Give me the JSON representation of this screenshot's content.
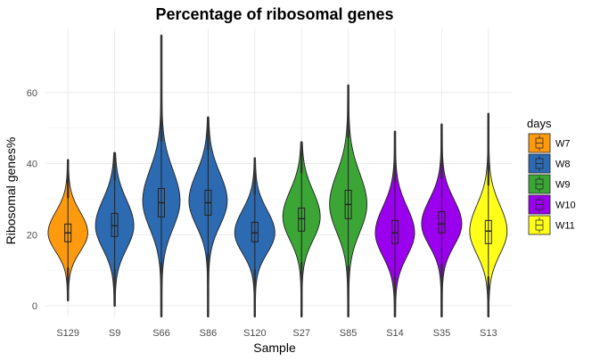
{
  "chart_data": {
    "type": "violin",
    "title": "Percentage of ribosomal genes",
    "xlabel": "Sample",
    "ylabel": "Ribosomal genes%",
    "ylim": [
      -3,
      78
    ],
    "yticks": [
      0,
      20,
      40,
      60
    ],
    "grid": true,
    "legend": {
      "title": "days",
      "placement": "right"
    },
    "groups": [
      {
        "name": "W7",
        "color": "#FF9A0E"
      },
      {
        "name": "W8",
        "color": "#2C6AB1"
      },
      {
        "name": "W9",
        "color": "#3BA635"
      },
      {
        "name": "W10",
        "color": "#9B00EE"
      },
      {
        "name": "W11",
        "color": "#FFFF1A"
      }
    ],
    "categories": [
      "S129",
      "S9",
      "S66",
      "S86",
      "S120",
      "S27",
      "S85",
      "S14",
      "S35",
      "S13"
    ],
    "samples": [
      {
        "category": "S129",
        "group": "W7",
        "min": 1.5,
        "max": 41,
        "median": 20.5,
        "q1": 18,
        "q3": 23,
        "mode": 20.5,
        "whisker_low": 10.5,
        "whisker_high": 30.5,
        "width": 0.85
      },
      {
        "category": "S9",
        "group": "W8",
        "min": 0,
        "max": 43,
        "median": 22.5,
        "q1": 19.5,
        "q3": 26,
        "mode": 22.5,
        "whisker_low": 10,
        "whisker_high": 35.5,
        "width": 0.82
      },
      {
        "category": "S66",
        "group": "W8",
        "min": -3,
        "max": 76,
        "median": 29,
        "q1": 25,
        "q3": 33,
        "mode": 29.5,
        "whisker_low": 12,
        "whisker_high": 46.5,
        "width": 0.8
      },
      {
        "category": "S86",
        "group": "W8",
        "min": -3,
        "max": 53,
        "median": 29,
        "q1": 25.5,
        "q3": 32.5,
        "mode": 29.5,
        "whisker_low": 14.5,
        "whisker_high": 44,
        "width": 0.82
      },
      {
        "category": "S120",
        "group": "W8",
        "min": -3,
        "max": 41.5,
        "median": 20.5,
        "q1": 18,
        "q3": 23.5,
        "mode": 20.5,
        "whisker_low": 10,
        "whisker_high": 31.5,
        "width": 0.86
      },
      {
        "category": "S27",
        "group": "W9",
        "min": -3,
        "max": 46,
        "median": 24.5,
        "q1": 21,
        "q3": 27.5,
        "mode": 25,
        "whisker_low": 12,
        "whisker_high": 37.5,
        "width": 0.8
      },
      {
        "category": "S85",
        "group": "W9",
        "min": -3,
        "max": 62,
        "median": 28.5,
        "q1": 24.5,
        "q3": 32.5,
        "mode": 28.5,
        "whisker_low": 11,
        "whisker_high": 47.5,
        "width": 0.8
      },
      {
        "category": "S14",
        "group": "W10",
        "min": -3,
        "max": 49,
        "median": 20.5,
        "q1": 17.5,
        "q3": 24,
        "mode": 20.5,
        "whisker_low": 8,
        "whisker_high": 35,
        "width": 0.84
      },
      {
        "category": "S35",
        "group": "W10",
        "min": -3,
        "max": 51,
        "median": 23,
        "q1": 20.5,
        "q3": 26.5,
        "mode": 23,
        "whisker_low": 11.5,
        "whisker_high": 36,
        "width": 0.86
      },
      {
        "category": "S13",
        "group": "W11",
        "min": -3,
        "max": 54,
        "median": 21,
        "q1": 17.5,
        "q3": 24,
        "mode": 21,
        "whisker_low": 8,
        "whisker_high": 34,
        "width": 0.8
      }
    ]
  }
}
